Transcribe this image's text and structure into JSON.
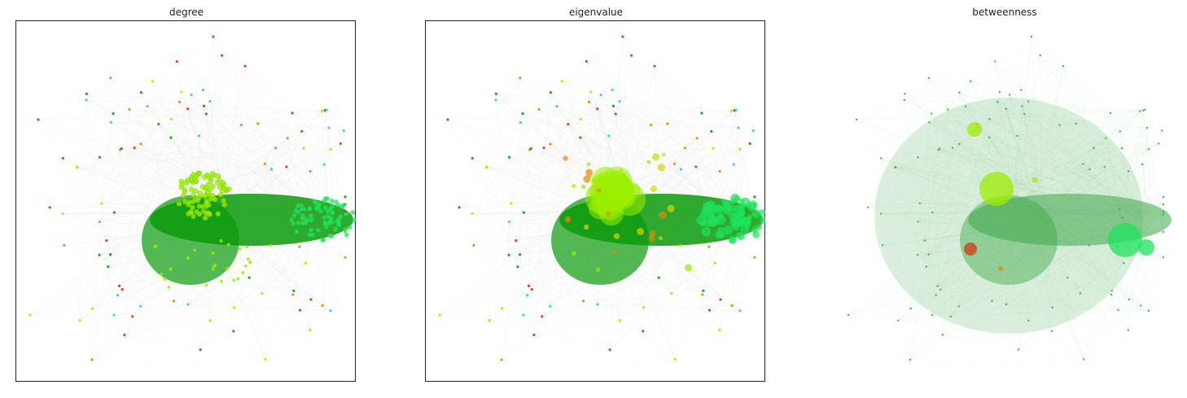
{
  "panels": [
    {
      "title": "degree",
      "framed": true,
      "mode": "degree"
    },
    {
      "title": "eigenvalue",
      "framed": true,
      "mode": "eigen"
    },
    {
      "title": "betweenness",
      "framed": false,
      "mode": "between"
    }
  ],
  "colors": {
    "edge_grey": "#555555",
    "edge_green": "#3fa84a",
    "core_green": "#0b9a0b",
    "cluster_lime": "#9aee00",
    "cluster_mint": "#1fe35c",
    "node_red": "#d23a14",
    "node_orange": "#e08a0a",
    "node_yellow": "#d6d600",
    "node_cyan": "#2ad6c0",
    "node_blue": "#2233cc"
  }
}
